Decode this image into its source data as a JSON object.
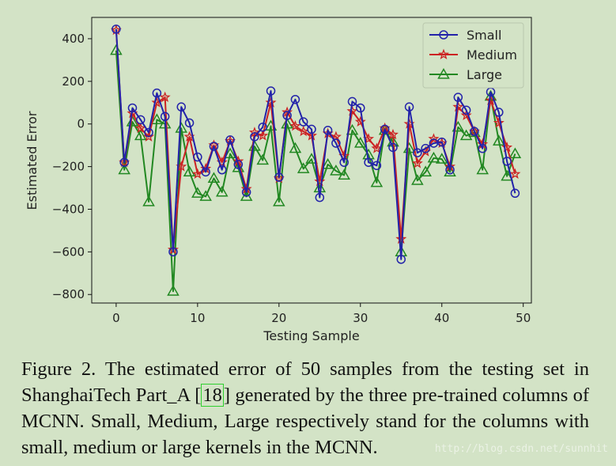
{
  "chart_data": {
    "type": "line",
    "xlabel": "Testing Sample",
    "ylabel": "Estimated Error",
    "xlim": [
      -3,
      51
    ],
    "ylim": [
      -840,
      500
    ],
    "xticks": [
      0,
      10,
      20,
      30,
      40,
      50
    ],
    "yticks": [
      400,
      200,
      0,
      -200,
      -400,
      -600,
      -800
    ],
    "legend_position": "top-right",
    "series": [
      {
        "name": "Small",
        "color": "#2222aa",
        "marker": "circle",
        "values": [
          445,
          -180,
          75,
          20,
          -40,
          145,
          35,
          -600,
          80,
          5,
          -155,
          -225,
          -105,
          -215,
          -75,
          -190,
          -320,
          -60,
          -15,
          155,
          -250,
          40,
          115,
          10,
          -25,
          -345,
          -30,
          -90,
          -180,
          105,
          75,
          -180,
          -195,
          -25,
          -110,
          -635,
          80,
          -135,
          -115,
          -90,
          -85,
          -215,
          125,
          65,
          -35,
          -115,
          150,
          55,
          -175,
          -325
        ]
      },
      {
        "name": "Medium",
        "color": "#cc2222",
        "marker": "star",
        "values": [
          440,
          -180,
          50,
          -20,
          -60,
          100,
          125,
          -590,
          -200,
          -60,
          -235,
          -210,
          -100,
          -180,
          -80,
          -175,
          -305,
          -40,
          -55,
          100,
          -255,
          55,
          -10,
          -35,
          -55,
          -270,
          -45,
          -60,
          -150,
          60,
          10,
          -70,
          -115,
          -20,
          -50,
          -540,
          0,
          -185,
          -130,
          -70,
          -90,
          -200,
          80,
          40,
          -35,
          -95,
          110,
          5,
          -110,
          -235
        ]
      },
      {
        "name": "Large",
        "color": "#228822",
        "marker": "triangle",
        "values": [
          345,
          -215,
          10,
          -55,
          -365,
          20,
          0,
          -785,
          -20,
          -225,
          -325,
          -340,
          -255,
          -320,
          -140,
          -205,
          -340,
          -105,
          -170,
          -10,
          -365,
          0,
          -115,
          -210,
          -165,
          -300,
          -190,
          -220,
          -240,
          -30,
          -90,
          -145,
          -275,
          -30,
          -85,
          -600,
          -115,
          -265,
          -225,
          -160,
          -165,
          -225,
          -15,
          -55,
          -40,
          -215,
          130,
          -80,
          -245,
          -140
        ]
      }
    ]
  },
  "caption": {
    "text_before": "Figure 2. The estimated error of 50 samples from the testing set in ShanghaiTech Part_A [",
    "ref": "18",
    "text_after": "] generated by the three pre-trained columns of MCNN. Small, Medium, Large respectively stand for the columns with small, medium or large kernels in the MCNN."
  },
  "watermark": "http://blog.csdn.net/sunnhit"
}
